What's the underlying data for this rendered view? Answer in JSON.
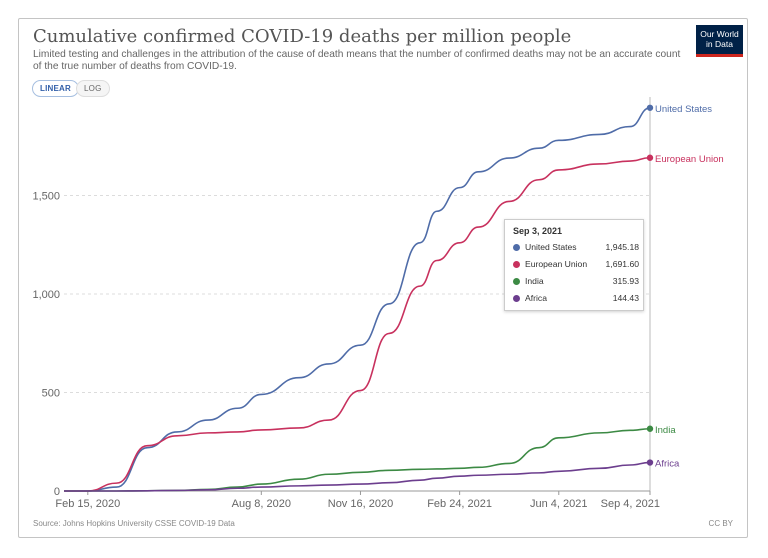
{
  "header": {
    "title": "Cumulative confirmed COVID-19 deaths per million people",
    "subtitle": "Limited testing and challenges in the attribution of the cause of death means that the number of confirmed deaths may not be an accurate count of the true number of deaths from COVID-19.",
    "logo_line1": "Our World",
    "logo_line2": "in Data",
    "logo_bg": "#002147",
    "logo_accent": "#ce261e"
  },
  "controls": {
    "linear_label": "LINEAR",
    "log_label": "LOG",
    "selected": "LINEAR"
  },
  "footer": {
    "source": "Source: Johns Hopkins University CSSE COVID-19 Data",
    "license": "CC BY"
  },
  "tooltip": {
    "date": "Sep 3, 2021",
    "rows": [
      {
        "name": "United States",
        "value": "1,945.18",
        "color": "#4f6ca8"
      },
      {
        "name": "European Union",
        "value": "1,691.60",
        "color": "#c8315e"
      },
      {
        "name": "India",
        "value": "315.93",
        "color": "#3c8a44"
      },
      {
        "name": "Africa",
        "value": "144.43",
        "color": "#6c3e8e"
      }
    ]
  },
  "chart_data": {
    "type": "line",
    "title": "Cumulative confirmed COVID-19 deaths per million people",
    "xlabel": "",
    "ylabel": "",
    "x_start": "2020-01-22",
    "x_end": "2021-09-04",
    "x_ticks": [
      "Feb 15, 2020",
      "Aug 8, 2020",
      "Nov 16, 2020",
      "Feb 24, 2021",
      "Jun 4, 2021",
      "Sep 4, 2021"
    ],
    "y_ticks": [
      "0",
      "500",
      "1,000",
      "1,500"
    ],
    "ylim": [
      0,
      2000
    ],
    "grid": "horizontal dashed",
    "legend": "line-end labels",
    "x": [
      "2020-01-22",
      "2020-02-15",
      "2020-03-15",
      "2020-04-15",
      "2020-05-15",
      "2020-06-15",
      "2020-07-15",
      "2020-08-08",
      "2020-09-15",
      "2020-10-15",
      "2020-11-16",
      "2020-12-15",
      "2021-01-15",
      "2021-02-01",
      "2021-02-24",
      "2021-03-15",
      "2021-04-15",
      "2021-05-15",
      "2021-06-04",
      "2021-07-15",
      "2021-08-15",
      "2021-09-04"
    ],
    "series": [
      {
        "name": "United States",
        "color": "#4f6ca8",
        "values": [
          0,
          0,
          20,
          220,
          300,
          360,
          420,
          490,
          575,
          645,
          740,
          950,
          1260,
          1420,
          1540,
          1620,
          1690,
          1740,
          1780,
          1810,
          1850,
          1945.18
        ]
      },
      {
        "name": "European Union",
        "color": "#c8315e",
        "values": [
          0,
          0,
          40,
          230,
          280,
          295,
          300,
          310,
          320,
          360,
          510,
          800,
          1040,
          1170,
          1260,
          1340,
          1470,
          1580,
          1630,
          1660,
          1675,
          1691.6
        ]
      },
      {
        "name": "India",
        "color": "#3c8a44",
        "values": [
          0,
          0,
          0,
          1,
          3,
          8,
          20,
          35,
          60,
          85,
          95,
          105,
          110,
          112,
          115,
          120,
          140,
          220,
          270,
          295,
          308,
          315.93
        ]
      },
      {
        "name": "Africa",
        "color": "#6c3e8e",
        "values": [
          0,
          0,
          0,
          1,
          3,
          6,
          14,
          20,
          26,
          30,
          35,
          42,
          55,
          65,
          75,
          80,
          85,
          92,
          100,
          115,
          132,
          144.43
        ]
      }
    ]
  }
}
